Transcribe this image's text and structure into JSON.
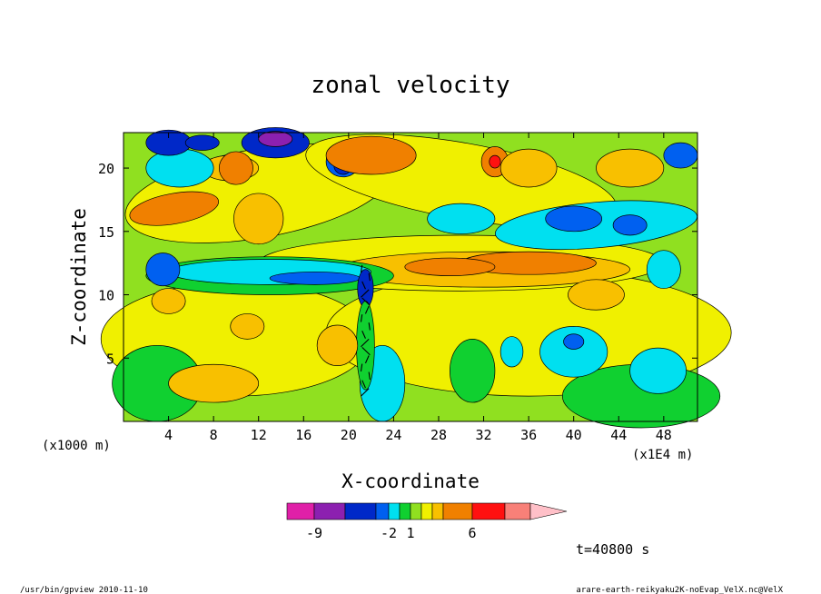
{
  "chart_data": {
    "type": "heatmap",
    "title": "zonal velocity",
    "xlabel": "X-coordinate",
    "ylabel": "Z-coordinate",
    "x_unit_left": "(x1000 m)",
    "x_unit_right": "(x1E4 m)",
    "x_ticks": [
      "4",
      "8",
      "12",
      "16",
      "20",
      "24",
      "28",
      "32",
      "36",
      "40",
      "44",
      "48"
    ],
    "y_ticks": [
      "5",
      "10",
      "15",
      "20"
    ],
    "xlim": [
      0,
      51
    ],
    "ylim": [
      0,
      22.8
    ],
    "colorbar": {
      "colors": [
        "#e020a8",
        "#8c20b0",
        "#0028c8",
        "#0060f0",
        "#00e0f0",
        "#10d030",
        "#90e020",
        "#f0f000",
        "#f8c000",
        "#f08000",
        "#ff1010",
        "#f88078",
        "#ffc0c8"
      ],
      "tick_labels": [
        "-9",
        "-2",
        "1",
        "6"
      ]
    },
    "time_label": "t=40800 s"
  },
  "footer": {
    "left": "/usr/bin/gpview  2010-11-10",
    "right": "arare-earth-reikyaku2K-noEvap_VelX.nc@VelX"
  }
}
